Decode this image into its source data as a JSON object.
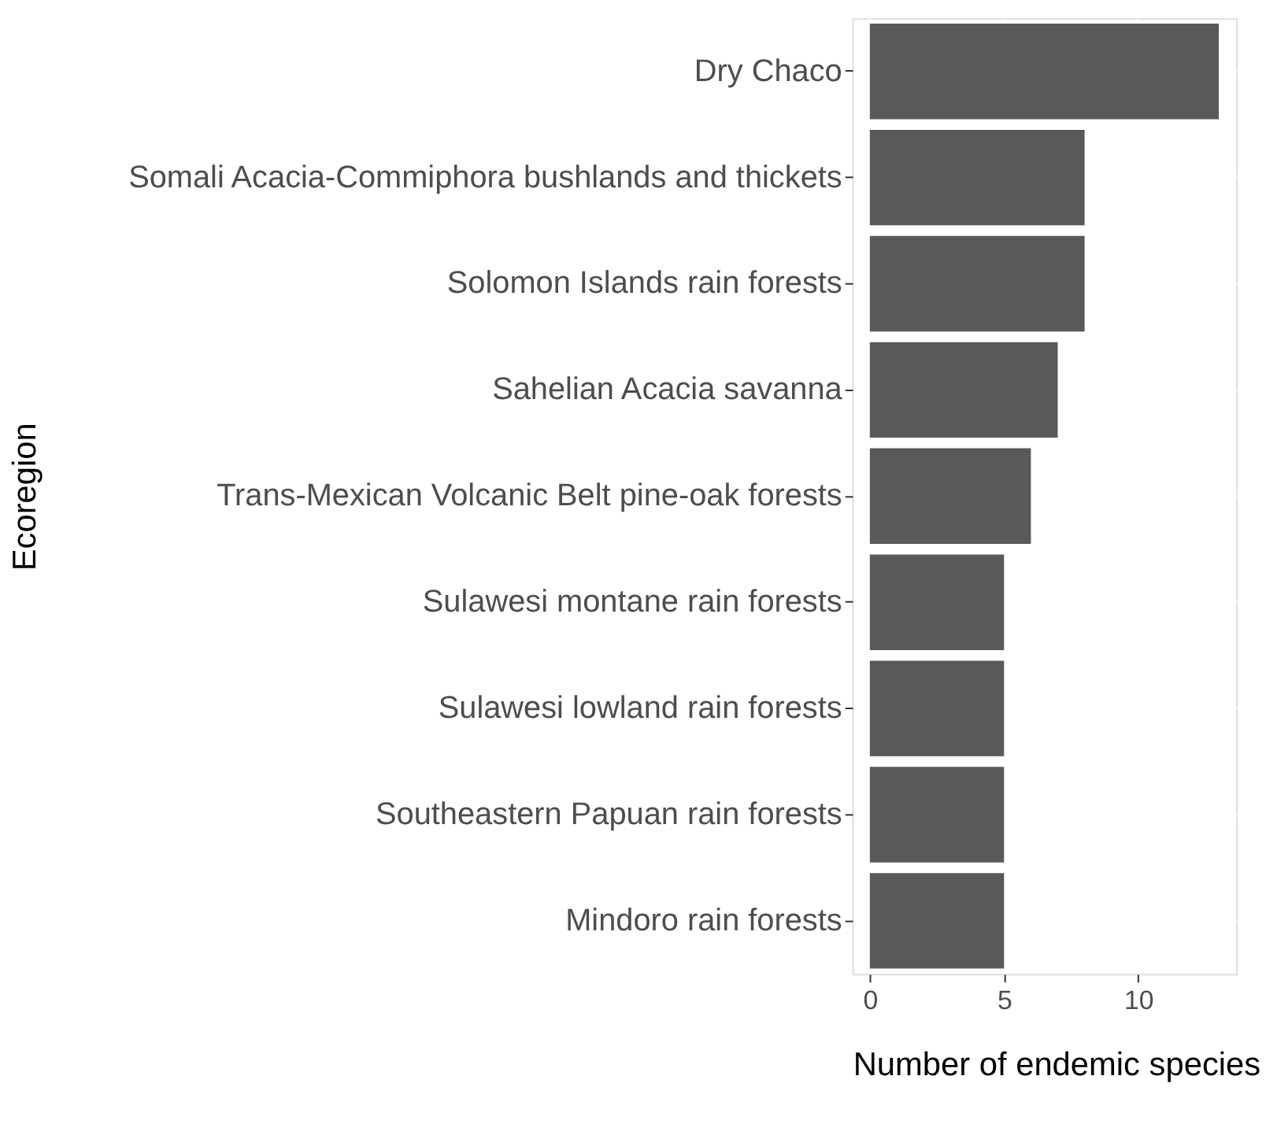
{
  "chart_data": {
    "type": "bar",
    "orientation": "horizontal",
    "xlabel": "Number of endemic species",
    "ylabel": "Ecoregion",
    "categories": [
      "Dry Chaco",
      "Somali Acacia-Commiphora bushlands and thickets",
      "Solomon Islands rain forests",
      "Sahelian Acacia savanna",
      "Trans-Mexican Volcanic Belt pine-oak forests",
      "Sulawesi montane rain forests",
      "Sulawesi lowland rain forests",
      "Southeastern Papuan rain forests",
      "Mindoro rain forests"
    ],
    "values": [
      13,
      8,
      8,
      7,
      6,
      5,
      5,
      5,
      5
    ],
    "color": "#595959",
    "xlim": [
      -0.65,
      13.65
    ],
    "xticks": [
      0,
      5,
      10
    ],
    "grid": true
  }
}
